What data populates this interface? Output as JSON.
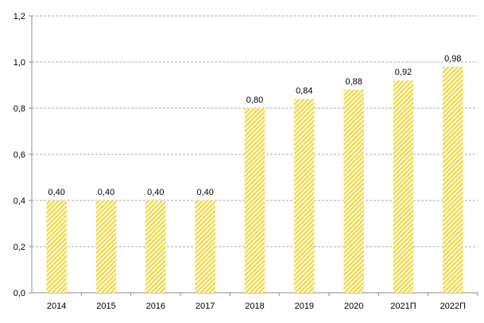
{
  "chart_data": {
    "type": "bar",
    "categories": [
      "2014",
      "2015",
      "2016",
      "2017",
      "2018",
      "2019",
      "2020",
      "2021П",
      "2022П"
    ],
    "values": [
      0.4,
      0.4,
      0.4,
      0.4,
      0.8,
      0.84,
      0.88,
      0.92,
      0.98
    ],
    "data_labels": [
      "0,40",
      "0,40",
      "0,40",
      "0,40",
      "0,80",
      "0,84",
      "0,88",
      "0,92",
      "0,98"
    ],
    "y_ticks": [
      0,
      0.2,
      0.4,
      0.6,
      0.8,
      1.0,
      1.2
    ],
    "y_tick_labels": [
      "0,0",
      "0,2",
      "0,4",
      "0,6",
      "0,8",
      "1,0",
      "1,2"
    ],
    "ylim": [
      0,
      1.2
    ],
    "title": "",
    "xlabel": "",
    "ylabel": "",
    "grid": "horizontal-dashed",
    "legend": "none",
    "colors": {
      "bar_fill": "#f0dc55",
      "bar_stripe": "#ffffff",
      "gridline": "#8c8c8c",
      "axis": "#8c8c8c"
    }
  }
}
